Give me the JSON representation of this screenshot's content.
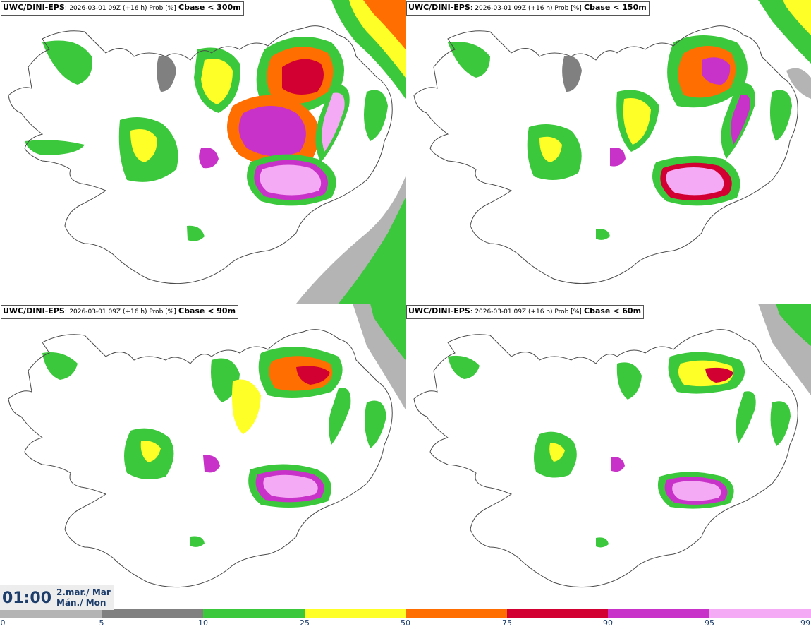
{
  "panels": [
    {
      "model": "UWC/DINI-EPS",
      "run": "2026-03-01 09Z (+16 h) Prob [%]",
      "variable": "Cbase < 300m"
    },
    {
      "model": "UWC/DINI-EPS",
      "run": "2026-03-01 09Z (+16 h) Prob [%]",
      "variable": "Cbase < 150m"
    },
    {
      "model": "UWC/DINI-EPS",
      "run": "2026-03-01 09Z (+16 h) Prob [%]",
      "variable": "Cbase < 90m"
    },
    {
      "model": "UWC/DINI-EPS",
      "run": "2026-03-01 09Z (+16 h) Prob [%]",
      "variable": "Cbase < 60m"
    }
  ],
  "valid_time": {
    "time": "01:00",
    "date_line1": "2.mar./ Mar",
    "date_line2": "Mán./ Mon"
  },
  "legend": {
    "ticks": [
      "0",
      "5",
      "10",
      "25",
      "50",
      "75",
      "90",
      "95",
      "99"
    ],
    "colors": [
      "#ffffff",
      "#b4b4b4",
      "#808080",
      "#3cc83c",
      "#ffff28",
      "#ff6e00",
      "#d20032",
      "#c832c8",
      "#f5aaf5"
    ]
  },
  "colors": {
    "outline": "#4a4a4a",
    "text_blue": "#1d3d6b"
  }
}
